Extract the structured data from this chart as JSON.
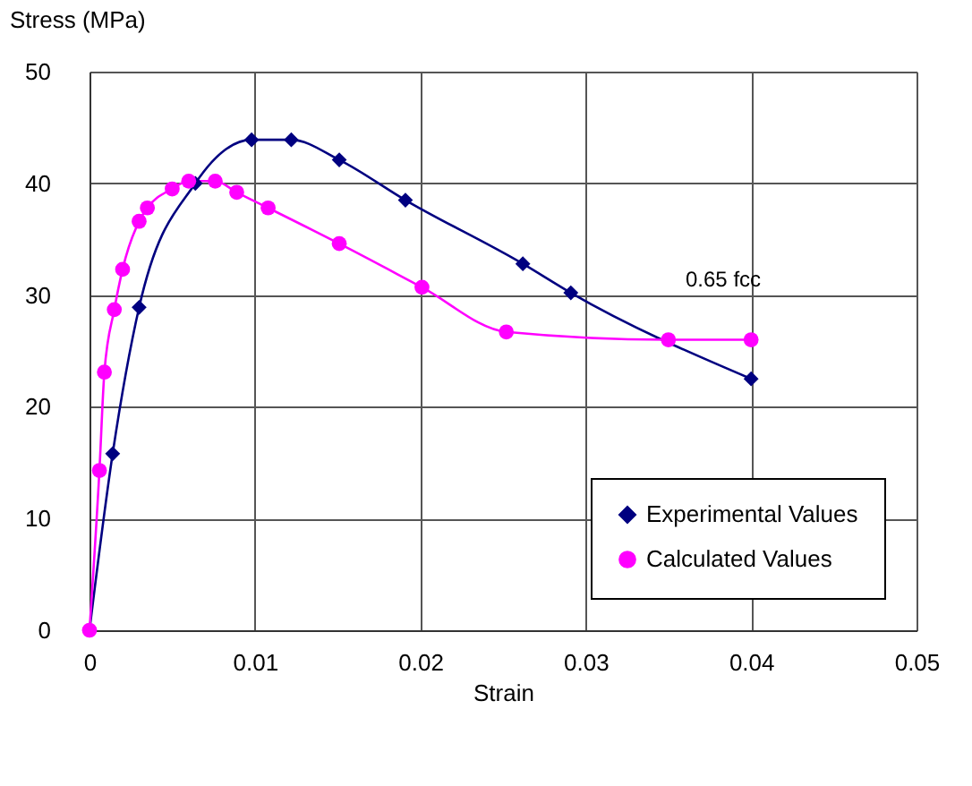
{
  "chart_data": {
    "type": "line",
    "xlabel": "Strain",
    "ylabel": "Stress (MPa)",
    "xlim": [
      0,
      0.05
    ],
    "xticks": [
      0,
      0.01,
      0.02,
      0.03,
      0.04,
      0.05
    ],
    "ylim": [
      0,
      50
    ],
    "yticks": [
      0,
      10,
      20,
      30,
      40,
      50
    ],
    "grid": true,
    "legend": "bottom right",
    "series": [
      {
        "name": "Experimental Values",
        "color": "#000080",
        "marker": "diamond",
        "x": [
          0,
          0.0014,
          0.003,
          0.0064,
          0.0098,
          0.0122,
          0.0151,
          0.0191,
          0.0262,
          0.0291,
          0.04
        ],
        "values": [
          0,
          15.8,
          28.9,
          40,
          43.9,
          43.9,
          42.1,
          38.5,
          32.8,
          30.2,
          22.5
        ]
      },
      {
        "name": "Calculated Values",
        "color": "#ff00ff",
        "marker": "circle",
        "x": [
          0,
          0.0006,
          0.0009,
          0.0015,
          0.002,
          0.003,
          0.0035,
          0.005,
          0.006,
          0.0076,
          0.0089,
          0.0108,
          0.0151,
          0.0201,
          0.0252,
          0.035,
          0.04
        ],
        "values": [
          0,
          14.3,
          23.1,
          28.7,
          32.3,
          36.6,
          37.8,
          39.5,
          40.2,
          40.2,
          39.2,
          37.8,
          34.6,
          30.7,
          26.7,
          26,
          26
        ]
      }
    ],
    "annotations": [
      "0.65 fcc"
    ]
  }
}
